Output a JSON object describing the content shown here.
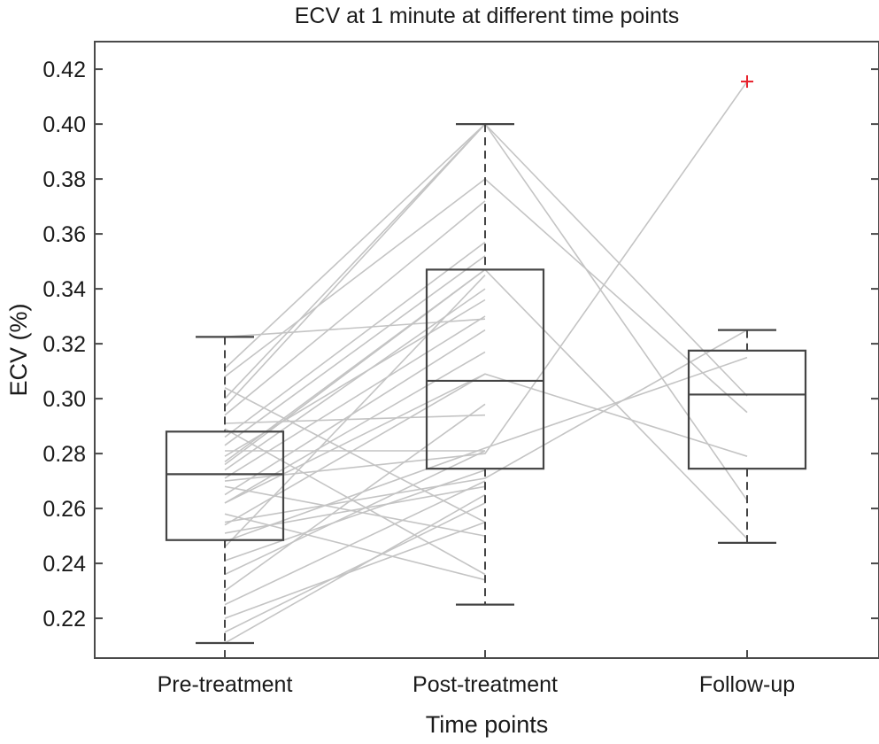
{
  "chart_data": {
    "type": "box",
    "title": "ECV at 1 minute at different time points",
    "xlabel": "Time points",
    "ylabel": "ECV (%)",
    "categories": [
      "Pre-treatment",
      "Post-treatment",
      "Follow-up"
    ],
    "ylim": [
      0.205,
      0.427
    ],
    "yticks": [
      0.22,
      0.24,
      0.26,
      0.28,
      0.3,
      0.32,
      0.34,
      0.36,
      0.38,
      0.4,
      0.42
    ],
    "ytick_labels": [
      "0.22",
      "0.24",
      "0.26",
      "0.28",
      "0.30",
      "0.32",
      "0.34",
      "0.36",
      "0.38",
      "0.40",
      "0.42"
    ],
    "grid": false,
    "boxes": [
      {
        "category": "Pre-treatment",
        "whisker_low": 0.211,
        "q1": 0.2485,
        "median": 0.2725,
        "q3": 0.288,
        "whisker_high": 0.3225
      },
      {
        "category": "Post-treatment",
        "whisker_low": 0.225,
        "q1": 0.2745,
        "median": 0.3065,
        "q3": 0.347,
        "whisker_high": 0.4
      },
      {
        "category": "Follow-up",
        "whisker_low": 0.2475,
        "q1": 0.2745,
        "median": 0.3015,
        "q3": 0.3175,
        "whisker_high": 0.325
      }
    ],
    "outliers": [
      {
        "category": "Follow-up",
        "value": 0.4155
      }
    ],
    "outlier_color": "#e8212b",
    "box_color": "#444444",
    "pair_line_color": "#c4c4c4",
    "paired_lines": [
      {
        "pre": 0.211,
        "post": 0.265
      },
      {
        "pre": 0.215,
        "post": 0.262
      },
      {
        "pre": 0.22,
        "post": 0.255
      },
      {
        "pre": 0.225,
        "post": 0.27
      },
      {
        "pre": 0.23,
        "post": 0.298
      },
      {
        "pre": 0.236,
        "post": 0.281
      },
      {
        "pre": 0.241,
        "post": 0.274
      },
      {
        "pre": 0.246,
        "post": 0.345
      },
      {
        "pre": 0.248,
        "post": 0.282,
        "follow": 0.315
      },
      {
        "pre": 0.251,
        "post": 0.268
      },
      {
        "pre": 0.254,
        "post": 0.309
      },
      {
        "pre": 0.258,
        "post": 0.234
      },
      {
        "pre": 0.262,
        "post": 0.317
      },
      {
        "pre": 0.265,
        "post": 0.325
      },
      {
        "pre": 0.268,
        "post": 0.25
      },
      {
        "pre": 0.271,
        "post": 0.33
      },
      {
        "pre": 0.274,
        "post": 0.34
      },
      {
        "pre": 0.277,
        "post": 0.347
      },
      {
        "pre": 0.279,
        "post": 0.336
      },
      {
        "pre": 0.281,
        "post": 0.281
      },
      {
        "pre": 0.283,
        "post": 0.352
      },
      {
        "pre": 0.286,
        "post": 0.357
      },
      {
        "pre": 0.289,
        "post": 0.236
      },
      {
        "pre": 0.291,
        "post": 0.294
      },
      {
        "pre": 0.294,
        "post": 0.372
      },
      {
        "pre": 0.297,
        "post": 0.4,
        "follow": 0.263
      },
      {
        "pre": 0.3,
        "post": 0.4,
        "follow": 0.301
      },
      {
        "pre": 0.304,
        "post": 0.255
      },
      {
        "pre": 0.308,
        "post": 0.38,
        "follow": 0.295
      },
      {
        "pre": 0.311,
        "post": 0.4
      },
      {
        "pre": 0.3225,
        "post": 0.329
      },
      {
        "pre": 0.255,
        "post": 0.271,
        "follow": 0.325
      },
      {
        "pre": 0.262,
        "post": 0.309,
        "follow": 0.279
      },
      {
        "pre": 0.27,
        "post": 0.28,
        "follow": 0.4155
      },
      {
        "pre": 0.276,
        "post": 0.347,
        "follow": 0.249
      }
    ]
  }
}
